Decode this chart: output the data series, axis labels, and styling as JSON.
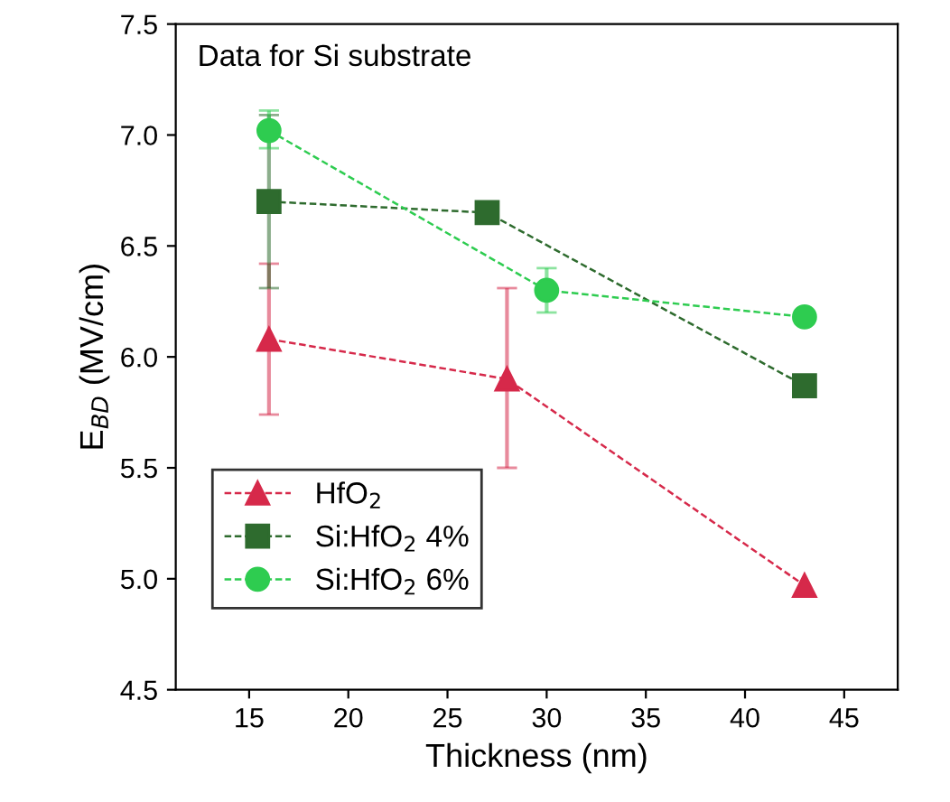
{
  "chart_data": {
    "type": "line",
    "xlabel": "Thickness (nm)",
    "ylabel": "E$_{BD}$ (MV/cm)",
    "annotations": [
      "Data for Si substrate"
    ],
    "xlim": [
      11.3,
      47.7
    ],
    "xticks": [
      15,
      20,
      25,
      30,
      35,
      40,
      45
    ],
    "ylim": [
      4.5,
      7.5
    ],
    "yticks": [
      4.5,
      {
        "value": 5,
        "label": "5.0"
      },
      5.5,
      {
        "value": 6,
        "label": "6.0"
      },
      6.5,
      {
        "value": 7,
        "label": "7.0"
      },
      7.5
    ],
    "grid": false,
    "legend": "bottom left",
    "line_style": "dashed",
    "series": [
      {
        "name": "HfO$_{2}$",
        "color": "#d6294a",
        "marker": "triangle",
        "x": [
          16,
          28,
          43
        ],
        "values": [
          6.08,
          5.9,
          4.97
        ],
        "errors": [
          [
            5.74,
            6.42
          ],
          [
            5.5,
            6.31
          ],
          null
        ]
      },
      {
        "name": "Si:HfO$_{2}$ 4%",
        "color": "#2e6b2e",
        "marker": "square",
        "x": [
          16,
          27,
          43
        ],
        "values": [
          6.7,
          6.65,
          5.87
        ],
        "errors": [
          [
            6.31,
            7.09
          ],
          0.03,
          0.03
        ]
      },
      {
        "name": "Si:HfO$_{2}$ 6%",
        "color": "#2ecc50",
        "marker": "circle",
        "x": [
          16,
          30,
          43
        ],
        "values": [
          7.02,
          6.3,
          6.18
        ],
        "errors": [
          [
            6.94,
            7.11
          ],
          0.1,
          null
        ]
      }
    ]
  }
}
